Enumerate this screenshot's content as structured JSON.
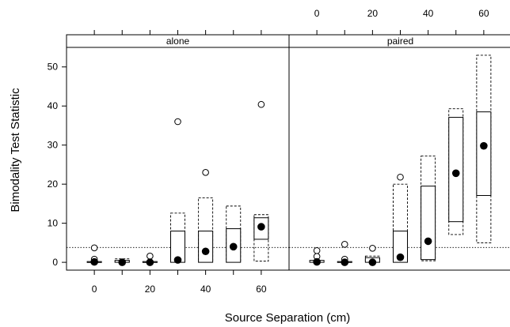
{
  "chart_data": {
    "type": "box",
    "xlabel": "Source Separation (cm)",
    "ylabel": "Bimodality Test Statistic",
    "xlim": [
      -10,
      70
    ],
    "ylim": [
      -2,
      55
    ],
    "x_ticks": [
      0,
      20,
      40,
      60
    ],
    "x_tick_labels": [
      "0",
      "20",
      "40",
      "60"
    ],
    "x_minor_ticks": [
      0,
      10,
      20,
      30,
      40,
      50,
      60
    ],
    "y_ticks": [
      0,
      10,
      20,
      30,
      40,
      50
    ],
    "y_tick_labels": [
      "0",
      "10",
      "20",
      "30",
      "40",
      "50"
    ],
    "reference_line_y": 3.8,
    "panels": [
      {
        "label": "alone",
        "groups": [
          {
            "x": 0,
            "median": 0.1,
            "q1": 0.0,
            "q3": 0.2,
            "dashed_box": null,
            "outliers": [
              3.7,
              0.8
            ]
          },
          {
            "x": 10,
            "median": 0.0,
            "q1": 0.0,
            "q3": 0.5,
            "dashed_box": [
              0.0,
              0.9
            ],
            "outliers": []
          },
          {
            "x": 20,
            "median": 0.0,
            "q1": 0.0,
            "q3": 0.2,
            "dashed_box": null,
            "outliers": [
              1.6
            ]
          },
          {
            "x": 30,
            "median": 0.6,
            "q1": 0.0,
            "q3": 8.0,
            "dashed_box": [
              0.0,
              12.6
            ],
            "outliers": [
              36.0
            ]
          },
          {
            "x": 40,
            "median": 2.8,
            "q1": 0.0,
            "q3": 8.0,
            "dashed_box": [
              0.0,
              16.5
            ],
            "outliers": [
              23.0
            ]
          },
          {
            "x": 50,
            "median": 4.0,
            "q1": 0.0,
            "q3": 8.6,
            "dashed_box": [
              0.0,
              14.4
            ],
            "outliers": []
          },
          {
            "x": 60,
            "median": 9.1,
            "q1": 5.9,
            "q3": 11.4,
            "dashed_box": [
              0.3,
              12.2
            ],
            "outliers": [
              40.4
            ]
          }
        ]
      },
      {
        "label": "paired",
        "groups": [
          {
            "x": 0,
            "median": 0.1,
            "q1": 0.0,
            "q3": 0.5,
            "dashed_box": null,
            "outliers": [
              3.0,
              1.5
            ]
          },
          {
            "x": 10,
            "median": 0.0,
            "q1": 0.0,
            "q3": 0.2,
            "dashed_box": null,
            "outliers": [
              4.6,
              0.8
            ]
          },
          {
            "x": 20,
            "median": 0.0,
            "q1": 0.0,
            "q3": 1.2,
            "dashed_box": [
              0.0,
              1.6
            ],
            "outliers": [
              3.6
            ]
          },
          {
            "x": 30,
            "median": 1.3,
            "q1": 0.0,
            "q3": 8.0,
            "dashed_box": [
              0.0,
              20.0
            ],
            "outliers": [
              21.8
            ]
          },
          {
            "x": 40,
            "median": 5.4,
            "q1": 0.7,
            "q3": 19.5,
            "dashed_box": [
              0.4,
              27.2
            ],
            "outliers": []
          },
          {
            "x": 50,
            "median": 22.8,
            "q1": 10.4,
            "q3": 37.1,
            "dashed_box": [
              7.1,
              39.3
            ],
            "outliers": []
          },
          {
            "x": 60,
            "median": 29.8,
            "q1": 17.1,
            "q3": 38.5,
            "dashed_box": [
              5.0,
              53.0
            ],
            "outliers": []
          }
        ]
      }
    ]
  }
}
